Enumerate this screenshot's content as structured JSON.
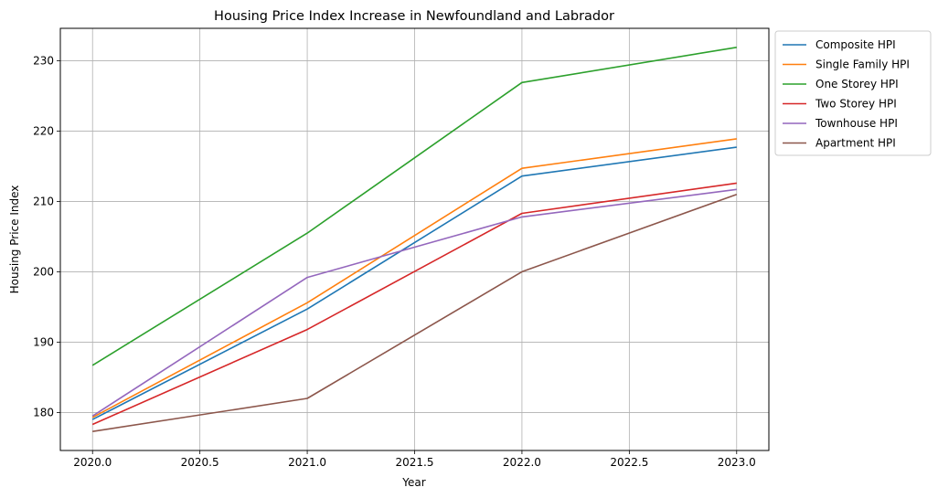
{
  "chart_data": {
    "type": "line",
    "title": "Housing Price Index Increase in Newfoundland and Labrador",
    "xlabel": "Year",
    "ylabel": "Housing Price Index",
    "x": [
      2020,
      2021,
      2022,
      2023
    ],
    "xlim": [
      2019.85,
      2023.15
    ],
    "ylim": [
      174.6,
      234.6
    ],
    "xticks": [
      2020.0,
      2020.5,
      2021.0,
      2021.5,
      2022.0,
      2022.5,
      2023.0
    ],
    "xtick_labels": [
      "2020.0",
      "2020.5",
      "2021.0",
      "2021.5",
      "2022.0",
      "2022.5",
      "2023.0"
    ],
    "yticks": [
      180,
      190,
      200,
      210,
      220,
      230
    ],
    "ytick_labels": [
      "180",
      "190",
      "200",
      "210",
      "220",
      "230"
    ],
    "grid": true,
    "legend_position": "outside-top-right",
    "series": [
      {
        "name": "Composite HPI",
        "color": "#1f77b4",
        "values": [
          179.0,
          194.7,
          213.6,
          217.7
        ]
      },
      {
        "name": "Single Family HPI",
        "color": "#ff7f0e",
        "values": [
          179.3,
          195.6,
          214.7,
          218.9
        ]
      },
      {
        "name": "One Storey HPI",
        "color": "#2ca02c",
        "values": [
          186.7,
          205.5,
          226.9,
          231.9
        ]
      },
      {
        "name": "Two Storey HPI",
        "color": "#d62728",
        "values": [
          178.3,
          191.8,
          208.3,
          212.6
        ]
      },
      {
        "name": "Townhouse HPI",
        "color": "#9467bd",
        "values": [
          179.5,
          199.2,
          207.8,
          211.7
        ]
      },
      {
        "name": "Apartment HPI",
        "color": "#8c564b",
        "values": [
          177.3,
          182.0,
          200.0,
          211.0
        ]
      }
    ]
  }
}
